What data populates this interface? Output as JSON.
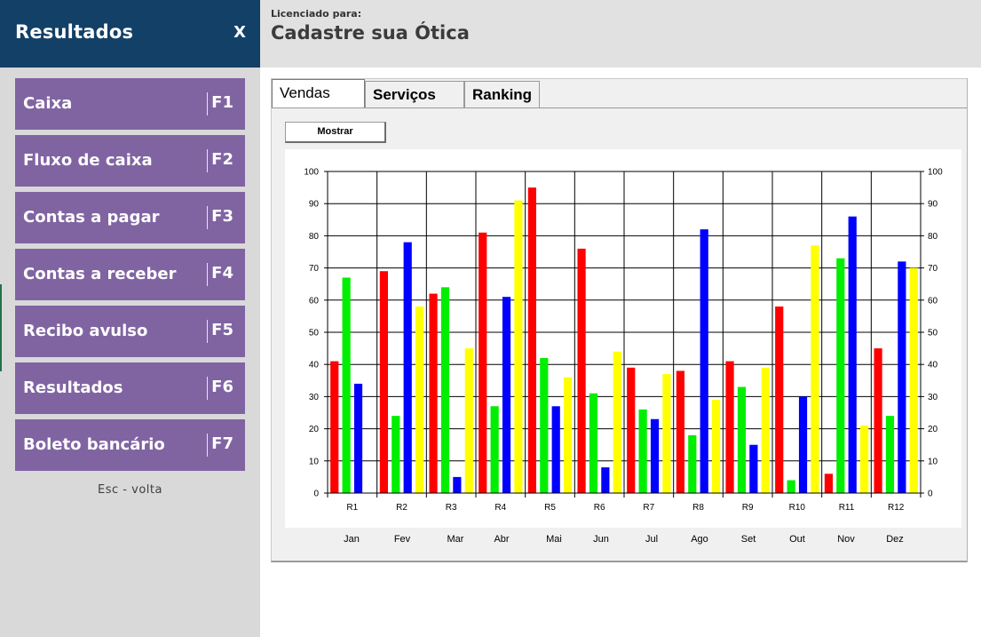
{
  "sidebar": {
    "title": "Resultados",
    "close_label": "X",
    "items": [
      {
        "label": "Caixa",
        "key": "F1"
      },
      {
        "label": "Fluxo de caixa",
        "key": "F2"
      },
      {
        "label": "Contas a pagar",
        "key": "F3"
      },
      {
        "label": "Contas a receber",
        "key": "F4"
      },
      {
        "label": "Recibo avulso",
        "key": "F5"
      },
      {
        "label": "Resultados",
        "key": "F6"
      },
      {
        "label": "Boleto bancário",
        "key": "F7"
      }
    ],
    "esc_hint": "Esc - volta"
  },
  "header": {
    "licensed_label": "Licenciado para:",
    "company": "Cadastre sua Ótica"
  },
  "tabs": [
    {
      "label": "Vendas",
      "active": true
    },
    {
      "label": "Serviços",
      "active": false
    },
    {
      "label": "Ranking",
      "active": false
    }
  ],
  "toolbar": {
    "show_label": "Mostrar"
  },
  "chart_data": {
    "type": "bar",
    "categories": [
      "R1",
      "R2",
      "R3",
      "R4",
      "R5",
      "R6",
      "R7",
      "R8",
      "R9",
      "R10",
      "R11",
      "R12"
    ],
    "secondary_labels": [
      "Jan",
      "Fev",
      "Mar",
      "Abr",
      "Mai",
      "Jun",
      "Jul",
      "Ago",
      "Set",
      "Out",
      "Nov",
      "Dez"
    ],
    "series": [
      {
        "color": "#ff0000",
        "values": [
          41,
          69,
          62,
          81,
          95,
          76,
          39,
          38,
          41,
          58,
          6,
          45
        ]
      },
      {
        "color": "#00ee00",
        "values": [
          67,
          24,
          64,
          27,
          42,
          31,
          26,
          18,
          33,
          4,
          73,
          24
        ]
      },
      {
        "color": "#0000ff",
        "values": [
          34,
          78,
          5,
          61,
          27,
          8,
          23,
          82,
          15,
          30,
          86,
          72
        ]
      },
      {
        "color": "#ffff00",
        "values": [
          null,
          58,
          45,
          91,
          36,
          44,
          37,
          29,
          39,
          77,
          21,
          70
        ]
      }
    ],
    "y_ticks": [
      "0",
      "10",
      "20",
      "30",
      "40",
      "50",
      "60",
      "70",
      "80",
      "90",
      "100"
    ],
    "ylim": [
      0,
      100
    ],
    "grid": true,
    "legend": "none"
  }
}
